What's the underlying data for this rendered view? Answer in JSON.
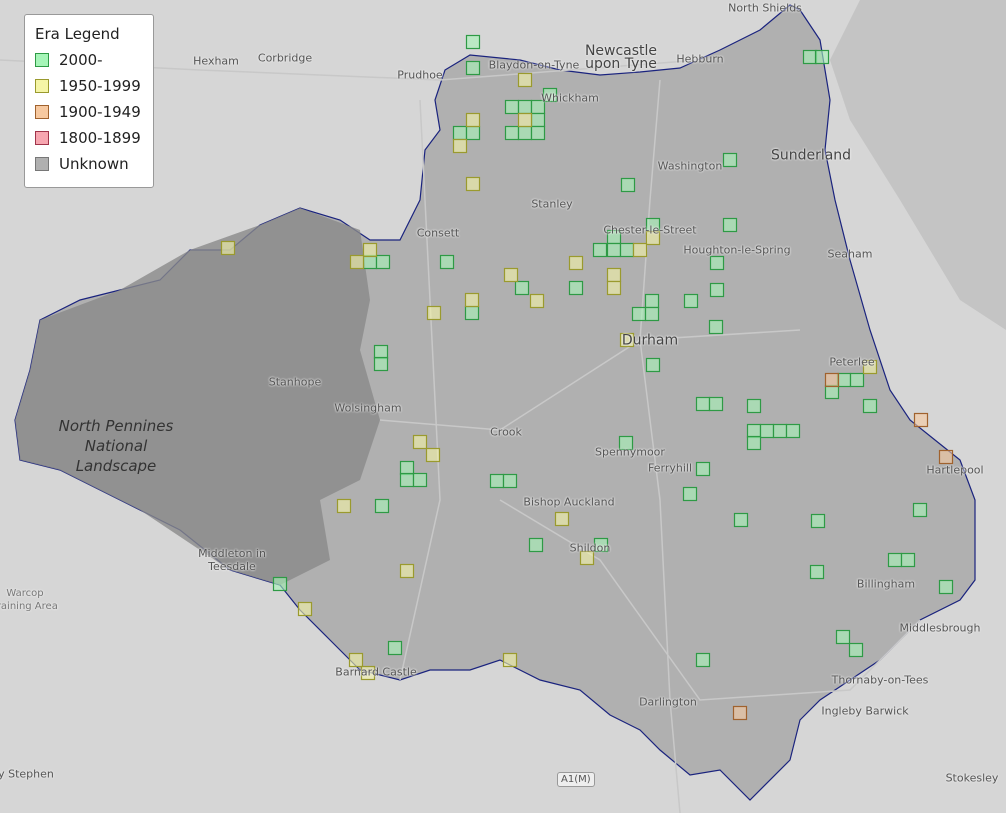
{
  "legend": {
    "title": "Era Legend",
    "items": [
      {
        "label": "2000-",
        "fill": "#a6f5b8",
        "stroke": "#2e9a45"
      },
      {
        "label": "1950-1999",
        "fill": "#f5f5a6",
        "stroke": "#9a9a2e"
      },
      {
        "label": "1900-1949",
        "fill": "#f7c9a0",
        "stroke": "#a0622e"
      },
      {
        "label": "1800-1899",
        "fill": "#f7a6b0",
        "stroke": "#a0344a"
      },
      {
        "label": "Unknown",
        "fill": "#b0b0b0",
        "stroke": "#777777"
      }
    ]
  },
  "places": {
    "north_shields": "North Shields",
    "newcastle": "Newcastle upon Tyne",
    "hebburn": "Hebburn",
    "hexham": "Hexham",
    "corbridge": "Corbridge",
    "prudhoe": "Prudhoe",
    "blaydon": "Blaydon-on-Tyne",
    "whickham": "Whickham",
    "sunderland": "Sunderland",
    "washington": "Washington",
    "stanley": "Stanley",
    "consett": "Consett",
    "chester": "Chester-le-Street",
    "houghton": "Houghton-le-Spring",
    "seaham": "Seaham",
    "durham": "Durham",
    "peterlee": "Peterlee",
    "stanhope": "Stanhope",
    "wolsingham": "Wolsingham",
    "crook": "Crook",
    "spennymoor": "Spennymoor",
    "ferryhill": "Ferryhill",
    "hartlepool": "Hartlepool",
    "park": "North Pennines National Landscape",
    "bishop": "Bishop Auckland",
    "shildon": "Shildon",
    "middleton": "Middleton in Teesdale",
    "billingham": "Billingham",
    "warcop": "Warcop Training Area",
    "middlesbrough": "Middlesbrough",
    "thornaby": "Thornaby-on-Tees",
    "barnard": "Barnard Castle",
    "darlington": "Darlington",
    "ingleby": "Ingleby Barwick",
    "stephen": "y Stephen",
    "stokesley": "Stokesley",
    "road": "A1(M)"
  },
  "colors": {
    "background": "#d4d4d4",
    "county_fill": "#a8a8a8",
    "park_fill": "#8e8e8e",
    "boundary": "#1a237e"
  }
}
